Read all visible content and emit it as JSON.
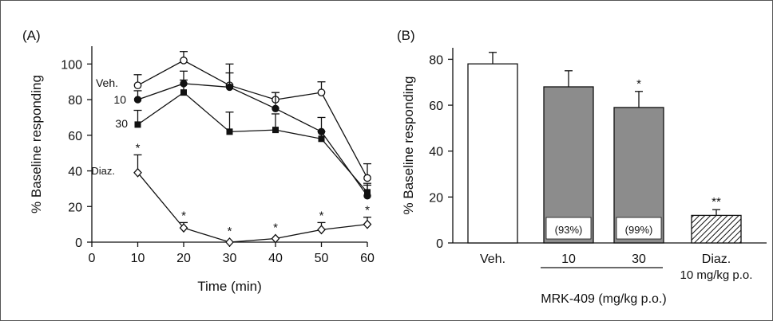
{
  "chart_data": [
    {
      "type": "line",
      "panel_label": "(A)",
      "xlabel": "Time (min)",
      "ylabel": "% Baseline responding",
      "xlim": [
        0,
        60
      ],
      "ylim": [
        0,
        110
      ],
      "xticks": [
        "0",
        "10",
        "20",
        "30",
        "40",
        "50",
        "60"
      ],
      "yticks": [
        "0",
        "20",
        "40",
        "60",
        "80",
        "100"
      ],
      "x": [
        10,
        20,
        30,
        40,
        50,
        60
      ],
      "series": [
        {
          "name": "Veh.",
          "marker": "open-circle",
          "values": [
            88,
            102,
            88,
            80,
            84,
            36
          ],
          "errors": [
            6,
            5,
            7,
            4,
            6,
            8
          ],
          "stars": [
            "",
            "",
            "",
            "",
            "",
            ""
          ]
        },
        {
          "name": "10",
          "marker": "filled-circle",
          "values": [
            80,
            89,
            87,
            75,
            62,
            26
          ],
          "errors": [
            5,
            7,
            13,
            9,
            8,
            6
          ],
          "stars": [
            "",
            "",
            "",
            "",
            "",
            ""
          ]
        },
        {
          "name": "30",
          "marker": "filled-square",
          "values": [
            66,
            84,
            62,
            63,
            58,
            28
          ],
          "errors": [
            8,
            7,
            11,
            9,
            4,
            5
          ],
          "stars": [
            "",
            "",
            "",
            "",
            "",
            ""
          ]
        },
        {
          "name": "Diaz.",
          "marker": "open-diamond",
          "values": [
            39,
            8,
            0,
            2,
            7,
            10
          ],
          "errors": [
            10,
            3,
            0,
            0,
            4,
            4
          ],
          "stars": [
            "*",
            "*",
            "*",
            "*",
            "*",
            "*"
          ]
        }
      ]
    },
    {
      "type": "bar",
      "panel_label": "(B)",
      "xlabel": "MRK-409 (mg/kg p.o.)",
      "ylabel": "% Baseline responding",
      "ylim": [
        0,
        85
      ],
      "yticks": [
        "0",
        "20",
        "40",
        "60",
        "80"
      ],
      "categories": [
        "Veh.",
        "10",
        "30",
        "Diaz."
      ],
      "category_sublabels": [
        "",
        "",
        "",
        "10 mg/kg p.o."
      ],
      "values": [
        78,
        68,
        59,
        12
      ],
      "errors": [
        5,
        7,
        7,
        2.5
      ],
      "fills": [
        "white",
        "gray",
        "gray",
        "hatched"
      ],
      "stars": [
        "",
        "",
        "*",
        "**"
      ],
      "occupancy_labels": [
        "",
        "(93%)",
        "(99%)",
        ""
      ]
    }
  ],
  "colors": {
    "gray_bar": "#8c8c8c",
    "ink": "#111111",
    "frame": "#555555"
  }
}
